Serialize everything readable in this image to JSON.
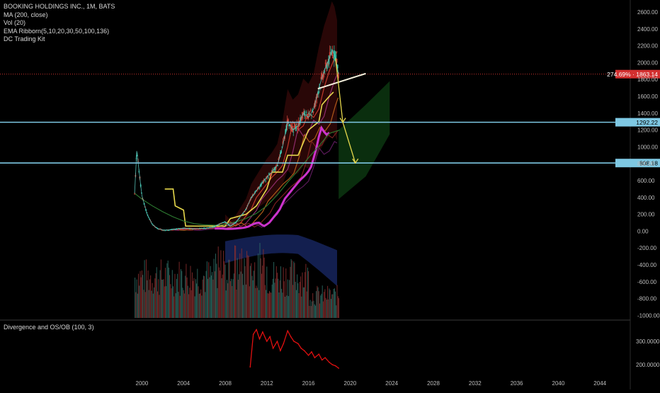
{
  "legend": {
    "symbol": "BOOKING HOLDINGS INC., 1M, BATS",
    "ma": "MA (200, close)",
    "vol": "Vol (20)",
    "ribbon": "EMA Ribborn(5,10,20,30,50,100,136)",
    "kit": "DC Trading Kit"
  },
  "sub_legend": "Divergence and OS/OB (100, 3)",
  "price_tags": {
    "last_pct": "274.69%",
    "last_price": "1863.14",
    "level1": "1292.22",
    "level2": "808.18"
  },
  "colors": {
    "background": "#000000",
    "candles": "#3db8a6",
    "price_line": "#e53935",
    "level_lines": "#7ec8e3",
    "ma_line": "#2e7d32",
    "projection": "#e6d84c",
    "ribbon_magenta": "#cc33cc",
    "ribbon_yellow": "#e6d84c",
    "divergence": "#e01010"
  },
  "chart_data": [
    {
      "type": "line",
      "title": "BOOKING HOLDINGS INC., 1M, BATS",
      "x_ticks": [
        "2000",
        "2004",
        "2008",
        "2012",
        "2016",
        "2020",
        "2024",
        "2028",
        "2032",
        "2036",
        "2040",
        "2044"
      ],
      "y_ticks": [
        "2600.00",
        "2400.00",
        "2200.00",
        "2000.00",
        "1800.00",
        "1600.00",
        "1400.00",
        "1200.00",
        "1000.00",
        "800.00",
        "600.00",
        "400.00",
        "200.00",
        "0.00",
        "-200.00",
        "-400.00",
        "-600.00",
        "-800.00",
        "-1000.00"
      ],
      "ylim": [
        -1000,
        2700
      ],
      "grid": false,
      "series": [
        {
          "name": "BKNG",
          "x": [
            1999.3,
            1999.5,
            2000.0,
            2000.5,
            2001.0,
            2001.5,
            2002.0,
            2002.5,
            2003.0,
            2003.5,
            2004.0,
            2004.5,
            2005.0,
            2005.5,
            2006.0,
            2006.5,
            2007.0,
            2007.5,
            2008.0,
            2008.5,
            2009.0,
            2009.5,
            2010.0,
            2010.5,
            2011.0,
            2011.5,
            2012.0,
            2012.5,
            2013.0,
            2013.5,
            2014.0,
            2014.5,
            2015.0,
            2015.5,
            2016.0,
            2016.5,
            2017.0,
            2017.5,
            2018.0,
            2018.3,
            2018.6,
            2018.9
          ],
          "y": [
            450,
            950,
            420,
            200,
            80,
            30,
            15,
            12,
            22,
            30,
            35,
            32,
            28,
            30,
            35,
            40,
            55,
            90,
            110,
            60,
            100,
            180,
            260,
            400,
            480,
            560,
            640,
            700,
            780,
            1000,
            1300,
            1200,
            1250,
            1400,
            1350,
            1450,
            1700,
            1900,
            2050,
            2150,
            2050,
            1863
          ]
        },
        {
          "name": "MA (200, close)",
          "x": [
            1999.3,
            2000,
            2001,
            2002,
            2003,
            2004,
            2005,
            2006,
            2007,
            2008,
            2009,
            2010,
            2011,
            2012,
            2013,
            2014,
            2015,
            2016,
            2017,
            2018,
            2019
          ],
          "y": [
            450,
            380,
            300,
            230,
            170,
            120,
            90,
            75,
            70,
            80,
            110,
            150,
            210,
            300,
            430,
            580,
            720,
            870,
            1010,
            1160,
            1200
          ]
        }
      ],
      "levels": [
        1863.14,
        1292.22,
        808.18
      ],
      "projection": {
        "x": [
          2018.6,
          2019.3,
          2020.5
        ],
        "y": [
          2050,
          1292,
          808
        ]
      }
    },
    {
      "type": "line",
      "title": "Divergence and OS/OB (100, 3)",
      "y_ticks": [
        "300.0000",
        "200.0000"
      ],
      "series": [
        {
          "name": "Divergence and OS/OB",
          "x": [
            2010.4,
            2010.7,
            2011.0,
            2011.3,
            2011.6,
            2012.0,
            2012.3,
            2012.6,
            2013.0,
            2013.3,
            2013.6,
            2014.0,
            2014.3,
            2014.6,
            2015.0,
            2015.3,
            2015.6,
            2016.0,
            2016.3,
            2016.6,
            2017.0,
            2017.3,
            2017.6,
            2018.0,
            2018.3,
            2018.6,
            2018.9
          ],
          "y": [
            190,
            330,
            350,
            310,
            340,
            300,
            320,
            270,
            300,
            260,
            290,
            345,
            320,
            300,
            290,
            270,
            260,
            240,
            255,
            230,
            245,
            220,
            230,
            210,
            200,
            195,
            185
          ]
        }
      ]
    }
  ]
}
